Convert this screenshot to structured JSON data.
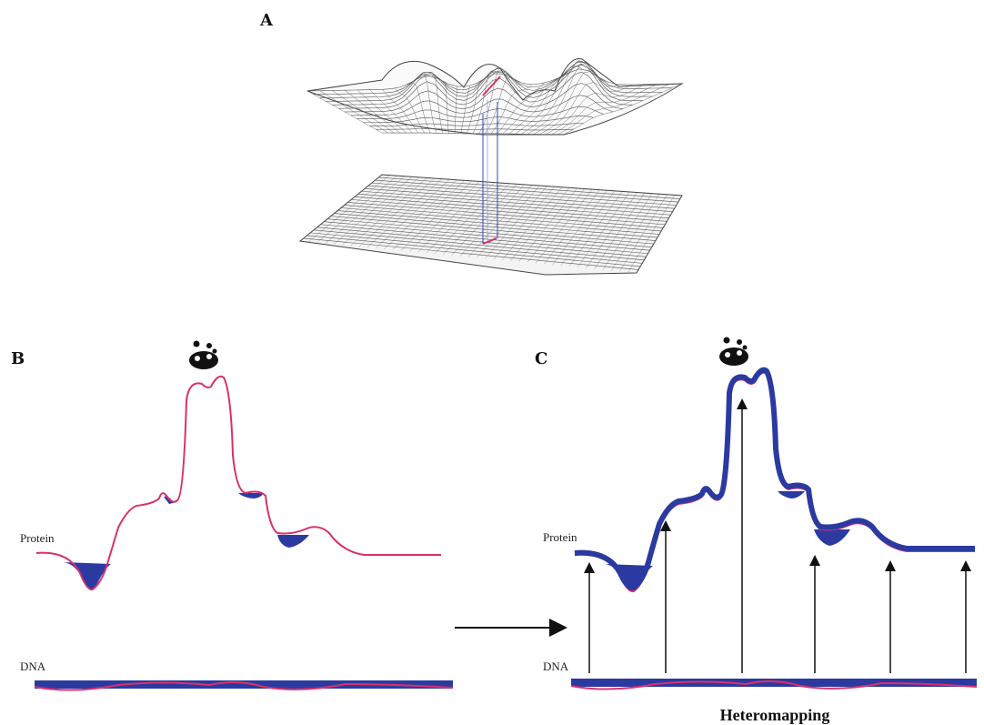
{
  "panels": {
    "a": {
      "letter": "A"
    },
    "b": {
      "letter": "B",
      "protein_label": "Protein",
      "dna_label": "DNA"
    },
    "c": {
      "letter": "C",
      "protein_label": "Protein",
      "dna_label": "DNA",
      "caption": "Heteromapping"
    }
  },
  "colors": {
    "protein_line": "#d8306e",
    "fill_blue": "#2b3aa0",
    "dna_blue": "#2b3aa0",
    "mesh": "#555555",
    "arrow": "#111111"
  },
  "icons": {
    "ligand": "ligand-molecule-icon"
  }
}
